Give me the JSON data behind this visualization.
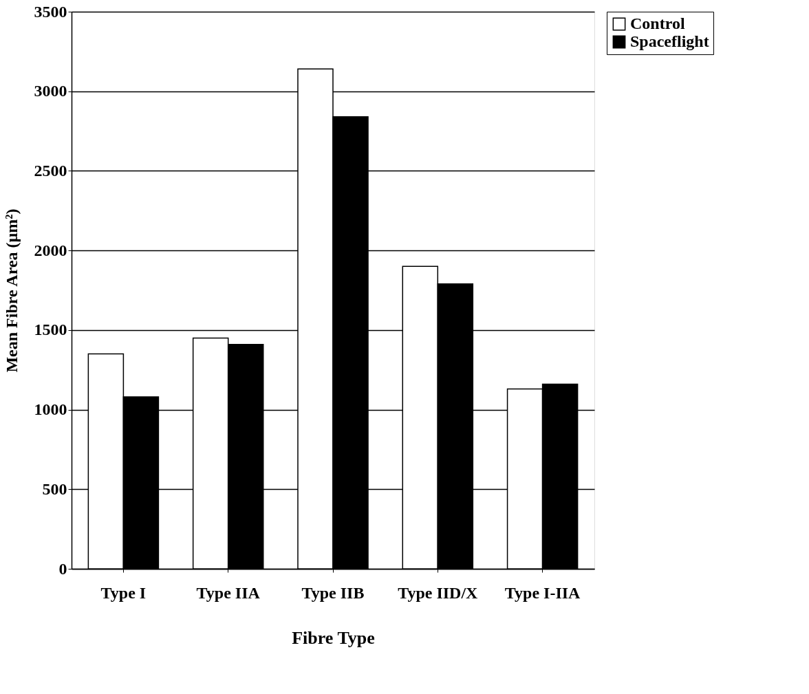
{
  "chart_data": {
    "type": "bar",
    "xlabel": "Fibre Type",
    "ylabel": "Mean Fibre Area  (µm²)",
    "categories": [
      "Type I",
      "Type IIA",
      "Type IIB",
      "Type IID/X",
      "Type I-IIA"
    ],
    "series": [
      {
        "name": "Control",
        "color": "#ffffff",
        "values": [
          1350,
          1450,
          3140,
          1900,
          1130
        ]
      },
      {
        "name": "Spaceflight",
        "color": "#000000",
        "values": [
          1080,
          1410,
          2840,
          1790,
          1160
        ]
      }
    ],
    "ylim": [
      0,
      3500
    ],
    "yticks": [
      0,
      500,
      1000,
      1500,
      2000,
      2500,
      3000,
      3500
    ],
    "grid": "y",
    "legend": "right"
  }
}
